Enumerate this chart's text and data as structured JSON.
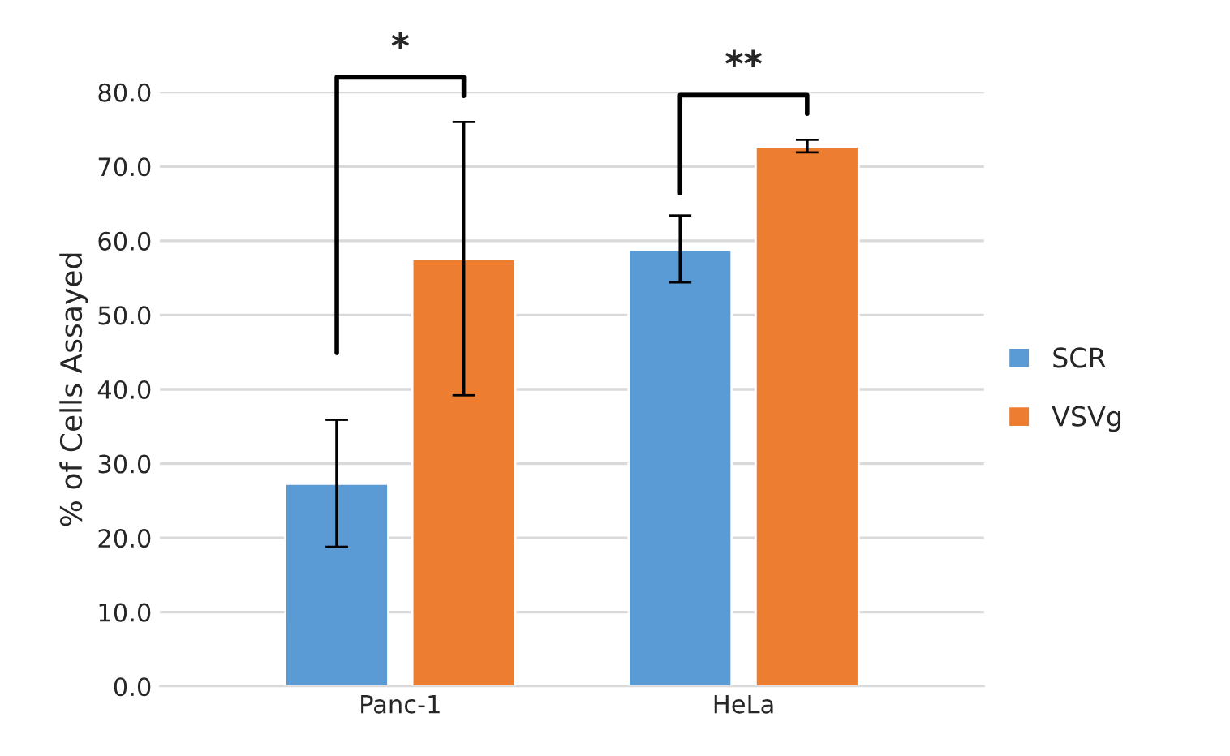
{
  "chart_data": {
    "type": "bar",
    "ylabel": "% of Cells Assayed",
    "categories": [
      "Panc-1",
      "HeLa"
    ],
    "series": [
      {
        "name": "SCR",
        "color": "#5b9bd5",
        "values": [
          27.3,
          58.8
        ],
        "errors": [
          [
            18.8,
            35.9
          ],
          [
            54.4,
            63.4
          ]
        ]
      },
      {
        "name": "VSVg",
        "color": "#ed7d31",
        "values": [
          57.5,
          72.7
        ],
        "errors": [
          [
            39.2,
            76.0
          ],
          [
            71.9,
            73.6
          ]
        ]
      }
    ],
    "ylim": [
      0,
      80
    ],
    "yticks": [
      {
        "value": 0,
        "label": "0.0"
      },
      {
        "value": 10,
        "label": "10.0"
      },
      {
        "value": 20,
        "label": "20.0"
      },
      {
        "value": 30,
        "label": "30.0"
      },
      {
        "value": 40,
        "label": "40.0"
      },
      {
        "value": 50,
        "label": "50.0"
      },
      {
        "value": 60,
        "label": "60.0"
      },
      {
        "value": 70,
        "label": "70.0"
      },
      {
        "value": 80,
        "label": "80.0"
      }
    ],
    "annotations": [
      "*",
      "**"
    ],
    "grid": "y",
    "legend": "right"
  }
}
